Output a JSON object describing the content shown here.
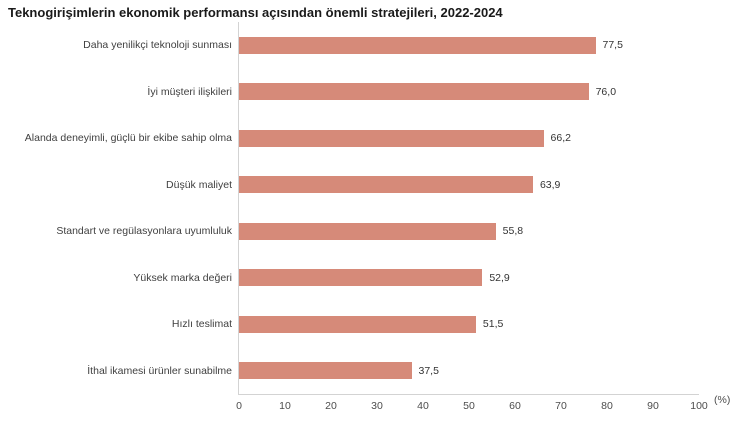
{
  "chart_data": {
    "type": "bar",
    "orientation": "horizontal",
    "title": "Teknogirişimlerin ekonomik performansı açısından önemli stratejileri, 2022-2024",
    "categories": [
      "Daha yenilikçi teknoloji sunması",
      "İyi müşteri ilişkileri",
      "Alanda deneyimli, güçlü bir ekibe sahip olma",
      "Düşük maliyet",
      "Standart ve regülasyonlara uyumluluk",
      "Yüksek marka değeri",
      "Hızlı teslimat",
      "İthal ikamesi ürünler sunabilme"
    ],
    "values": [
      77.5,
      76.0,
      66.2,
      63.9,
      55.8,
      52.9,
      51.5,
      37.5
    ],
    "value_labels": [
      "77,5",
      "76,0",
      "66,2",
      "63,9",
      "55,8",
      "52,9",
      "51,5",
      "37,5"
    ],
    "xlabel": "(%)",
    "ylabel": "",
    "xlim": [
      0,
      100
    ],
    "x_ticks": [
      0,
      10,
      20,
      30,
      40,
      50,
      60,
      70,
      80,
      90,
      100
    ],
    "grid": false,
    "legend": "none"
  },
  "colors": {
    "bar": "#d68a79",
    "axis_line": "#d3d3d3",
    "title_text": "#1a1a1a",
    "category_text": "#404040",
    "value_text": "#333333",
    "tick_text": "#4d4d4d"
  }
}
